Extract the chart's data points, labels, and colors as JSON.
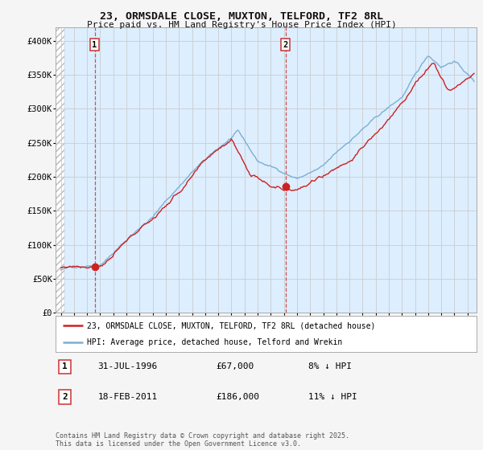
{
  "title_line1": "23, ORMSDALE CLOSE, MUXTON, TELFORD, TF2 8RL",
  "title_line2": "Price paid vs. HM Land Registry's House Price Index (HPI)",
  "ylim": [
    0,
    420000
  ],
  "yticks": [
    0,
    50000,
    100000,
    150000,
    200000,
    250000,
    300000,
    350000,
    400000
  ],
  "ytick_labels": [
    "£0",
    "£50K",
    "£100K",
    "£150K",
    "£200K",
    "£250K",
    "£300K",
    "£350K",
    "£400K"
  ],
  "hpi_color": "#7bafd4",
  "price_color": "#cc2222",
  "marker_color": "#cc2222",
  "sale1_date": 1996.58,
  "sale1_price": 67000,
  "sale1_label": "1",
  "sale2_date": 2011.12,
  "sale2_price": 186000,
  "sale2_label": "2",
  "vline_color": "#cc3333",
  "grid_color": "#cccccc",
  "plot_bg_color": "#ddeeff",
  "hatch_bg_color": "#ffffff",
  "legend_line1": "23, ORMSDALE CLOSE, MUXTON, TELFORD, TF2 8RL (detached house)",
  "legend_line2": "HPI: Average price, detached house, Telford and Wrekin",
  "table_rows": [
    {
      "num": "1",
      "date": "31-JUL-1996",
      "price": "£67,000",
      "note": "8% ↓ HPI"
    },
    {
      "num": "2",
      "date": "18-FEB-2011",
      "price": "£186,000",
      "note": "11% ↓ HPI"
    }
  ],
  "footer": "Contains HM Land Registry data © Crown copyright and database right 2025.\nThis data is licensed under the Open Government Licence v3.0.",
  "fig_bg_color": "#f5f5f5"
}
